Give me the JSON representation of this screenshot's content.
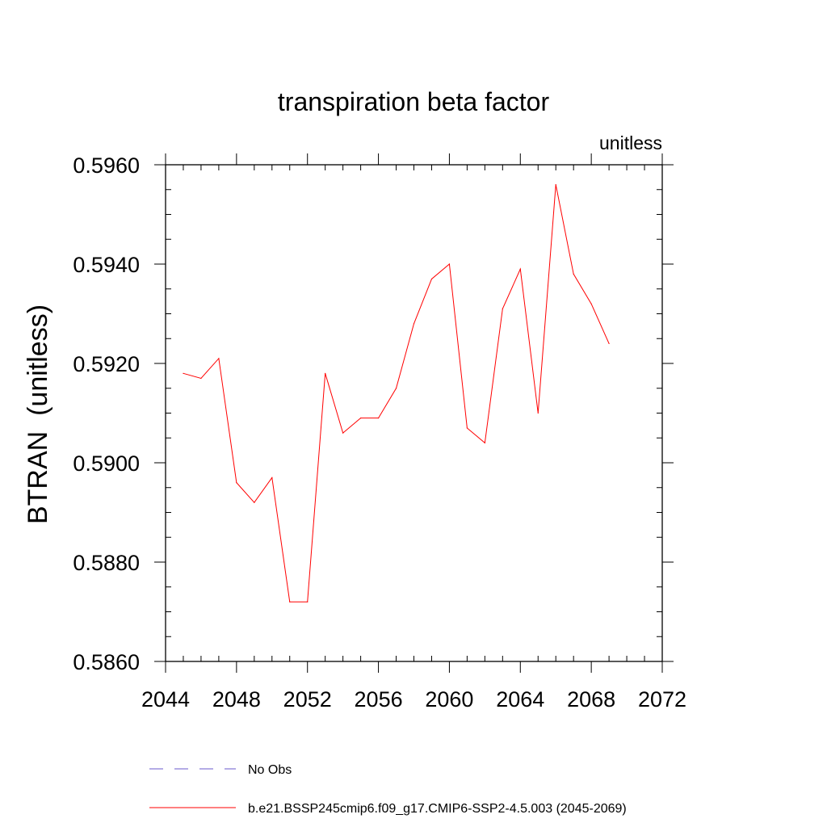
{
  "chart_data": {
    "type": "line",
    "title": "transpiration beta factor",
    "units_label": "unitless",
    "ylabel": "BTRAN  (unitless)",
    "xlabel": "",
    "xlim": [
      2044,
      2072
    ],
    "ylim": [
      0.586,
      0.596
    ],
    "x_major_ticks": [
      2044,
      2048,
      2052,
      2056,
      2060,
      2064,
      2068,
      2072
    ],
    "x_tick_labels": [
      "2044",
      "2048",
      "2052",
      "2056",
      "2060",
      "2064",
      "2068",
      "2072"
    ],
    "x_minor_step": 1,
    "y_major_ticks": [
      0.586,
      0.588,
      0.59,
      0.592,
      0.594,
      0.596
    ],
    "y_tick_labels": [
      "0.5860",
      "0.5880",
      "0.5900",
      "0.5920",
      "0.5940",
      "0.5960"
    ],
    "y_minor_step": 0.0005,
    "grid": false,
    "series": [
      {
        "name": "b.e21.BSSP245cmip6.f09_g17.CMIP6-SSP2-4.5.003 (2045-2069)",
        "color": "#ff0000",
        "dash": "solid",
        "x": [
          2045,
          2046,
          2047,
          2048,
          2049,
          2050,
          2051,
          2052,
          2053,
          2054,
          2055,
          2056,
          2057,
          2058,
          2059,
          2060,
          2061,
          2062,
          2063,
          2064,
          2065,
          2066,
          2067,
          2068,
          2069
        ],
        "values": [
          0.5918,
          0.5917,
          0.5921,
          0.5896,
          0.5892,
          0.5897,
          0.5872,
          0.5872,
          0.5918,
          0.5906,
          0.5909,
          0.5909,
          0.5915,
          0.5928,
          0.5937,
          0.594,
          0.5907,
          0.5904,
          0.5931,
          0.5939,
          0.591,
          0.5956,
          0.5938,
          0.5932,
          0.5924
        ]
      }
    ],
    "legend": {
      "placement": "bottom",
      "entries": [
        {
          "label": "No Obs",
          "color": "#6a5acd",
          "dash": "dashed"
        },
        {
          "label": "b.e21.BSSP245cmip6.f09_g17.CMIP6-SSP2-4.5.003 (2045-2069)",
          "color": "#ff0000",
          "dash": "solid"
        }
      ]
    }
  }
}
